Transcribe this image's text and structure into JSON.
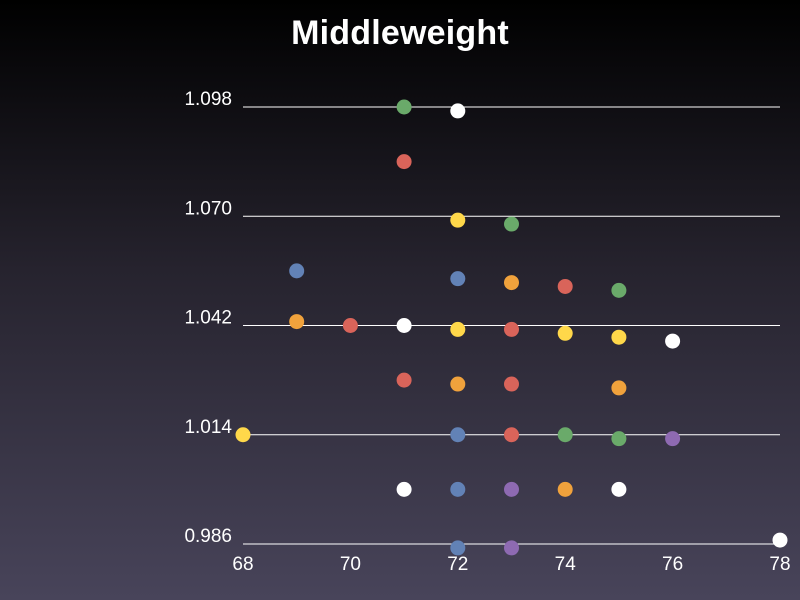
{
  "chart_data": {
    "type": "scatter",
    "title": "Middleweight",
    "xlabel": "",
    "ylabel": "",
    "xlim": [
      68,
      78
    ],
    "ylim": [
      0.986,
      1.098
    ],
    "xticks": [
      "68",
      "70",
      "72",
      "74",
      "76",
      "78"
    ],
    "yticks": [
      "0.986",
      "1.014",
      "1.042",
      "1.070",
      "1.098"
    ],
    "grid": "horizontal",
    "legend": "none",
    "points": [
      {
        "x": 71,
        "y": 1.098,
        "color": "#6aaa6a"
      },
      {
        "x": 72,
        "y": 1.097,
        "color": "#ffffff"
      },
      {
        "x": 71,
        "y": 1.084,
        "color": "#d9645a"
      },
      {
        "x": 72,
        "y": 1.069,
        "color": "#ffd84a"
      },
      {
        "x": 73,
        "y": 1.068,
        "color": "#6aaa6a"
      },
      {
        "x": 69,
        "y": 1.056,
        "color": "#6282b6"
      },
      {
        "x": 72,
        "y": 1.054,
        "color": "#6282b6"
      },
      {
        "x": 73,
        "y": 1.053,
        "color": "#f0a23c"
      },
      {
        "x": 74,
        "y": 1.052,
        "color": "#d9645a"
      },
      {
        "x": 75,
        "y": 1.051,
        "color": "#6aaa6a"
      },
      {
        "x": 69,
        "y": 1.043,
        "color": "#f0a23c"
      },
      {
        "x": 70,
        "y": 1.042,
        "color": "#d9645a"
      },
      {
        "x": 71,
        "y": 1.042,
        "color": "#ffffff"
      },
      {
        "x": 72,
        "y": 1.041,
        "color": "#ffd84a"
      },
      {
        "x": 73,
        "y": 1.041,
        "color": "#d9645a"
      },
      {
        "x": 74,
        "y": 1.04,
        "color": "#ffd84a"
      },
      {
        "x": 75,
        "y": 1.039,
        "color": "#ffd84a"
      },
      {
        "x": 76,
        "y": 1.038,
        "color": "#ffffff"
      },
      {
        "x": 71,
        "y": 1.028,
        "color": "#d9645a"
      },
      {
        "x": 72,
        "y": 1.027,
        "color": "#f0a23c"
      },
      {
        "x": 73,
        "y": 1.027,
        "color": "#d9645a"
      },
      {
        "x": 75,
        "y": 1.026,
        "color": "#f0a23c"
      },
      {
        "x": 68,
        "y": 1.014,
        "color": "#ffd84a"
      },
      {
        "x": 72,
        "y": 1.014,
        "color": "#6282b6"
      },
      {
        "x": 73,
        "y": 1.014,
        "color": "#d9645a"
      },
      {
        "x": 74,
        "y": 1.014,
        "color": "#6aaa6a"
      },
      {
        "x": 75,
        "y": 1.013,
        "color": "#6aaa6a"
      },
      {
        "x": 76,
        "y": 1.013,
        "color": "#8e6ab2"
      },
      {
        "x": 71,
        "y": 1.0,
        "color": "#ffffff"
      },
      {
        "x": 72,
        "y": 1.0,
        "color": "#6282b6"
      },
      {
        "x": 73,
        "y": 1.0,
        "color": "#8e6ab2"
      },
      {
        "x": 74,
        "y": 1.0,
        "color": "#f0a23c"
      },
      {
        "x": 75,
        "y": 1.0,
        "color": "#ffffff"
      },
      {
        "x": 72,
        "y": 0.985,
        "color": "#6282b6"
      },
      {
        "x": 73,
        "y": 0.985,
        "color": "#8e6ab2"
      },
      {
        "x": 78,
        "y": 0.987,
        "color": "#ffffff"
      }
    ]
  }
}
